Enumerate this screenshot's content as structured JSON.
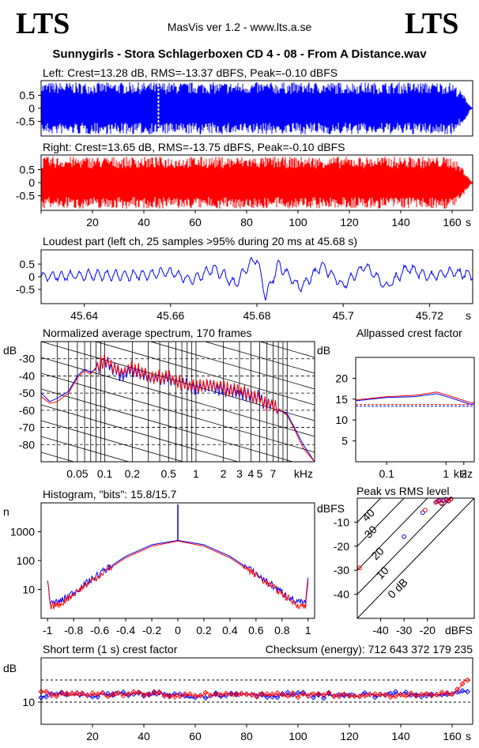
{
  "header": {
    "logo_left": "LTS",
    "logo_right": "LTS",
    "app": "MasVis ver 1.2 - www.lts.a.se",
    "file_title": "Sunnygirls - Stora Schlagerboxen CD 4 - 08 - From A Distance.wav"
  },
  "colors": {
    "left": "#0000ff",
    "right": "#ff0000",
    "frame": "#000000"
  },
  "chart_data": [
    {
      "type": "area",
      "title": "Left: Crest=13.28 dB, RMS=-13.37 dBFS, Peak=-0.10 dBFS",
      "channel": "left",
      "y_ticks": [
        "0.5",
        "0",
        "-0.5"
      ],
      "ylim": [
        -1,
        1
      ],
      "xlim": [
        0,
        168
      ],
      "marker_at_s": 45.68,
      "envelope": {
        "t": [
          0,
          2,
          160,
          162,
          164,
          166,
          167,
          168
        ],
        "amp": [
          0.97,
          1.0,
          1.0,
          0.8,
          0.6,
          0.3,
          0.1,
          0.02
        ]
      }
    },
    {
      "type": "area",
      "title": "Right: Crest=13.65 dB, RMS=-13.75 dBFS, Peak=-0.10 dBFS",
      "channel": "right",
      "y_ticks": [
        "0.5",
        "0",
        "-0.5"
      ],
      "ylim": [
        -1,
        1
      ],
      "xlim": [
        0,
        168
      ],
      "x_ticks": [
        "20",
        "40",
        "60",
        "80",
        "100",
        "120",
        "140",
        "160"
      ],
      "x_unit": "s",
      "envelope": {
        "t": [
          0,
          2,
          160,
          162,
          164,
          166,
          167,
          168
        ],
        "amp": [
          0.97,
          1.0,
          1.0,
          0.8,
          0.6,
          0.3,
          0.1,
          0.02
        ]
      }
    },
    {
      "type": "line",
      "title": "Loudest part (left  ch, 25 samples >95% during 20 ms at 45.68 s)",
      "xlim": [
        45.63,
        45.73
      ],
      "ylim": [
        -1,
        1
      ],
      "y_ticks": [
        "0.5",
        "0",
        "-0.5"
      ],
      "x_ticks": [
        "45.64",
        "45.66",
        "45.68",
        "45.7",
        "45.72"
      ],
      "x_unit": "s",
      "x": [
        45.63,
        45.64,
        45.65,
        45.655,
        45.66,
        45.665,
        45.67,
        45.675,
        45.678,
        45.68,
        45.682,
        45.685,
        45.69,
        45.695,
        45.7,
        45.705,
        45.71,
        45.715,
        45.72,
        45.725,
        45.73
      ],
      "y": [
        0.0,
        0.05,
        0.05,
        0.1,
        0.2,
        -0.15,
        0.35,
        -0.3,
        0.45,
        0.75,
        -0.8,
        0.5,
        -0.45,
        0.45,
        -0.35,
        0.45,
        -0.4,
        0.35,
        0.0,
        0.2,
        0.05
      ]
    },
    {
      "type": "line",
      "title": "Normalized average spectrum, 170 frames",
      "ylabel": "dB",
      "y_ticks": [
        "-30",
        "-40",
        "-50",
        "-60",
        "-70",
        "-80"
      ],
      "x_ticks": [
        "0.05",
        "0.1",
        "0.2",
        "0.5",
        "1",
        "2",
        "3",
        "4",
        "5",
        "7"
      ],
      "x_unit": "kHz",
      "xlim_khz": [
        0.02,
        20
      ],
      "ylim": [
        -90,
        -20
      ],
      "series": [
        {
          "channel": "left",
          "x": [
            0.02,
            0.025,
            0.03,
            0.04,
            0.05,
            0.06,
            0.07,
            0.08,
            0.1,
            0.15,
            0.2,
            0.3,
            0.5,
            0.7,
            1,
            1.5,
            2,
            3,
            4,
            5,
            6,
            7,
            8,
            10,
            12,
            15,
            20
          ],
          "y": [
            -50,
            -55,
            -53,
            -49,
            -40,
            -36,
            -38,
            -36,
            -32,
            -39,
            -36,
            -41,
            -42,
            -45,
            -47,
            -46,
            -48,
            -50,
            -52,
            -52,
            -58,
            -57,
            -60,
            -62,
            -70,
            -80,
            -90
          ]
        },
        {
          "channel": "right",
          "x": [
            0.02,
            0.025,
            0.03,
            0.04,
            0.05,
            0.06,
            0.07,
            0.08,
            0.1,
            0.15,
            0.2,
            0.3,
            0.5,
            0.7,
            1,
            1.5,
            2,
            3,
            4,
            5,
            6,
            7,
            8,
            10,
            12,
            15,
            20
          ],
          "y": [
            -52,
            -56,
            -55,
            -50,
            -41,
            -37,
            -39,
            -35,
            -31,
            -38,
            -35,
            -40,
            -41,
            -44,
            -46,
            -45,
            -47,
            -49,
            -51,
            -53,
            -57,
            -56,
            -59,
            -63,
            -71,
            -82,
            -90
          ]
        }
      ]
    },
    {
      "type": "line",
      "title": "Allpassed crest factor",
      "ylabel": "dB",
      "y_ticks": [
        "20",
        "15",
        "10",
        "5"
      ],
      "ylim": [
        0,
        25
      ],
      "x_ticks": [
        "0.1",
        "1",
        "2"
      ],
      "x_unit": "kHz",
      "xlim_khz": [
        0.03,
        3
      ],
      "ref_levels": [
        13.3,
        13.7
      ],
      "series": [
        {
          "channel": "left",
          "x": [
            0.03,
            0.1,
            0.3,
            0.7,
            1.2,
            2.5,
            3
          ],
          "y": [
            14.6,
            15.4,
            15.6,
            16.3,
            15.3,
            13.8,
            13.8
          ]
        },
        {
          "channel": "right",
          "x": [
            0.03,
            0.1,
            0.3,
            0.7,
            1.2,
            2.5,
            3
          ],
          "y": [
            14.8,
            15.6,
            15.9,
            16.7,
            15.7,
            14.2,
            14.1
          ]
        }
      ]
    },
    {
      "type": "line",
      "title": "Histogram, \"bits\": 15.8/15.7",
      "ylabel": "n",
      "y_ticks": [
        "1000",
        "100",
        "10"
      ],
      "x_ticks": [
        "-1",
        "-0.8",
        "-0.6",
        "-0.4",
        "-0.2",
        "0",
        "0.2",
        "0.4",
        "0.6",
        "0.8",
        "1"
      ],
      "xlim": [
        -1.05,
        1.05
      ],
      "series": [
        {
          "channel": "left",
          "x": [
            -1,
            -0.98,
            -0.9,
            -0.8,
            -0.6,
            -0.4,
            -0.2,
            0,
            0.2,
            0.4,
            0.6,
            0.8,
            0.9,
            0.98,
            1
          ],
          "log_y": [
            1.4,
            0.5,
            0.6,
            0.9,
            1.55,
            2.15,
            2.55,
            2.7,
            2.55,
            2.15,
            1.55,
            0.9,
            0.6,
            0.5,
            1.4
          ]
        },
        {
          "channel": "right",
          "x": [
            -1,
            -0.98,
            -0.9,
            -0.8,
            -0.6,
            -0.4,
            -0.2,
            0,
            0.2,
            0.4,
            0.6,
            0.8,
            0.9,
            0.98,
            1
          ],
          "log_y": [
            1.3,
            0.4,
            0.5,
            0.85,
            1.5,
            2.1,
            2.5,
            2.68,
            2.5,
            2.1,
            1.5,
            0.85,
            0.5,
            0.4,
            1.3
          ]
        }
      ]
    },
    {
      "type": "scatter",
      "title": "Peak vs RMS level",
      "ylabel": "dBFS",
      "xlabel": "dBFS",
      "y_ticks": [
        "-10",
        "-20",
        "-30",
        "-40"
      ],
      "x_ticks": [
        "-40",
        "-30",
        "-20"
      ],
      "xlim": [
        -50,
        0
      ],
      "ylim": [
        -50,
        0
      ],
      "diag_labels": [
        "40",
        "30",
        "20",
        "10",
        "0 dB"
      ],
      "series": [
        {
          "channel": "left",
          "x": [
            -16,
            -15,
            -14,
            -13,
            -12,
            -11,
            -10,
            -22,
            -30
          ],
          "y": [
            -1.5,
            -1,
            -2,
            -1,
            -0.5,
            -1.2,
            -0.3,
            -6,
            -16
          ]
        },
        {
          "channel": "right",
          "x": [
            -16.5,
            -15.5,
            -14,
            -13.5,
            -12,
            -11,
            -10,
            -21,
            -49
          ],
          "y": [
            -1.8,
            -1.2,
            -2.3,
            -1,
            -0.7,
            -1,
            -0.4,
            -5,
            -29
          ]
        }
      ]
    },
    {
      "type": "line",
      "title": "Short term (1 s) crest factor",
      "checksum": "Checksum (energy):   712 643 372 179 235",
      "ylabel": "dB",
      "y_ticks": [
        "10"
      ],
      "ylim": [
        5,
        20
      ],
      "xlim": [
        0,
        168
      ],
      "x_ticks": [
        "20",
        "40",
        "60",
        "80",
        "100",
        "120",
        "140",
        "160"
      ],
      "x_unit": "s",
      "ref_levels": [
        10,
        15
      ],
      "series": [
        {
          "channel": "left",
          "x": [
            0,
            10,
            20,
            30,
            40,
            50,
            60,
            70,
            80,
            90,
            100,
            110,
            120,
            130,
            140,
            150,
            160,
            165
          ],
          "y": [
            11.5,
            11.8,
            11.4,
            12.0,
            11.6,
            11.8,
            11.3,
            11.7,
            11.9,
            11.5,
            11.8,
            11.4,
            11.7,
            11.6,
            11.9,
            11.5,
            11.8,
            12.3
          ]
        },
        {
          "channel": "right",
          "x": [
            0,
            10,
            20,
            30,
            40,
            50,
            60,
            70,
            80,
            90,
            100,
            110,
            120,
            130,
            140,
            150,
            160,
            165
          ],
          "y": [
            12.0,
            11.5,
            11.8,
            11.6,
            12.1,
            11.7,
            11.6,
            11.9,
            11.6,
            11.8,
            11.5,
            11.9,
            11.6,
            11.8,
            11.5,
            11.9,
            11.6,
            14.5
          ]
        }
      ]
    }
  ]
}
